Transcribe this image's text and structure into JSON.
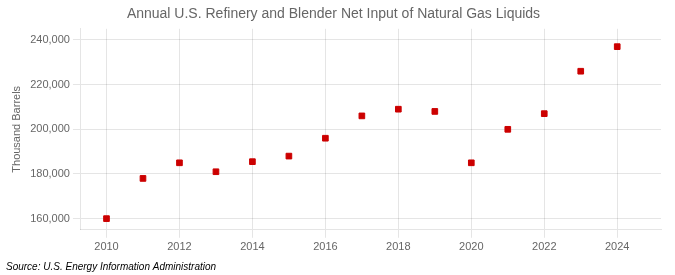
{
  "chart_data": {
    "type": "scatter",
    "title": "Annual U.S. Refinery and Blender Net Input of Natural Gas Liquids",
    "y_label": "Thousand Barrels",
    "annotations": [
      "Source: U.S. Energy Information Administration"
    ],
    "x": [
      2010,
      2011,
      2012,
      2013,
      2014,
      2015,
      2016,
      2017,
      2018,
      2019,
      2020,
      2021,
      2022,
      2023,
      2024
    ],
    "values": [
      160000,
      178000,
      185000,
      181000,
      185500,
      188000,
      196000,
      206000,
      209000,
      208000,
      185000,
      200000,
      207000,
      226000,
      237000
    ],
    "color": "#cc0000",
    "marker": "square",
    "xlim": [
      2009.3,
      2025.2
    ],
    "xticks": [
      2010,
      2012,
      2014,
      2016,
      2018,
      2020,
      2022,
      2024
    ],
    "ylim": [
      155000,
      245000
    ],
    "yticks": [
      {
        "value": 160000,
        "label": "160,000"
      },
      {
        "value": 180000,
        "label": "180,000"
      },
      {
        "value": 200000,
        "label": "200,000"
      },
      {
        "value": 220000,
        "label": "220,000"
      },
      {
        "value": 240000,
        "label": "240,000"
      }
    ],
    "grid": true
  }
}
